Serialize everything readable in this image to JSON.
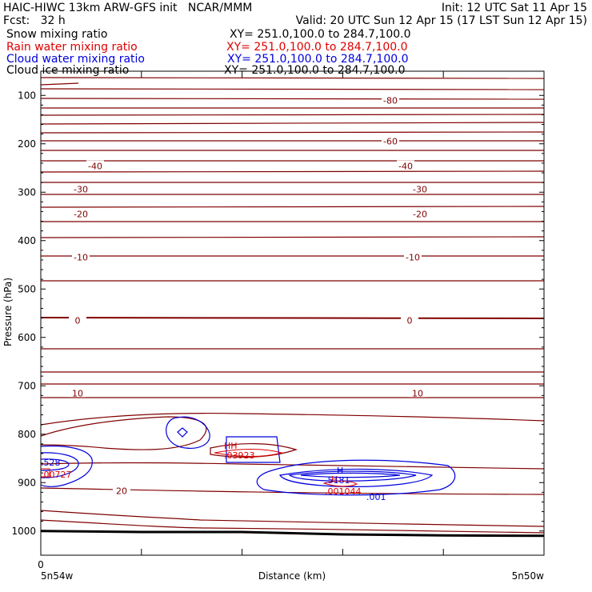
{
  "header": {
    "title": "HAIC-HIWC 13km ARW-GFS init   NCAR/MMM",
    "init": "Init: 12 UTC Sat 11 Apr 15",
    "fcst": "Fcst:   32 h",
    "valid": "Valid: 20 UTC Sun 12 Apr 15 (17 LST Sun 12 Apr 15)"
  },
  "fields": [
    {
      "label": "Snow mixing ratio",
      "xy": "XY= 251.0,100.0 to 284.7,100.0",
      "color": "#000000"
    },
    {
      "label": "Rain water mixing ratio",
      "xy": "XY= 251.0,100.0 to 284.7,100.0",
      "color": "#e00000"
    },
    {
      "label": "Cloud water mixing ratio",
      "xy": "XY= 251.0,100.0 to 284.7,100.0",
      "color": "#0000dd"
    },
    {
      "label": "Cloud ice mixing ratio",
      "xy": "XY= 251.0,100.0 to 284.7,100.0",
      "color": "#000000"
    }
  ],
  "colors": {
    "temperature": "#800000",
    "cloud_water": "#0000dd",
    "rain_water": "#e00000",
    "ground": "#000000"
  },
  "chart_data": {
    "type": "line",
    "ylabel": "Pressure (hPa)",
    "xlabel": "Distance (km)",
    "y_inverted": true,
    "ylim": [
      1050,
      50
    ],
    "y_ticks": [
      100,
      200,
      300,
      400,
      500,
      600,
      700,
      800,
      900,
      1000
    ],
    "x_ticks": [
      "0",
      "",
      "",
      "",
      ""
    ],
    "x_start_label": "5n54w",
    "x_end_label": "5n50w",
    "temperature_contour_labels": [
      {
        "text": "-80",
        "p": 110
      },
      {
        "text": "-60",
        "p": 195
      },
      {
        "text": "-40",
        "p": 246
      },
      {
        "text": "-30",
        "p": 294
      },
      {
        "text": "-20",
        "p": 345
      },
      {
        "text": "-10",
        "p": 434
      },
      {
        "text": "0",
        "p": 565
      },
      {
        "text": "10",
        "p": 715
      },
      {
        "text": "20",
        "p": 917
      }
    ],
    "field_labels": [
      {
        "text": "H",
        "color": "cloud_water"
      },
      {
        "text": "H",
        "color": "rain_water"
      },
      {
        "text": ".5181",
        "color": "cloud_water"
      },
      {
        "text": ".001044",
        "color": "rain_water"
      },
      {
        "text": ".001",
        "color": "cloud_water"
      },
      {
        "text": ".528",
        "color": "cloud_water"
      },
      {
        "text": ".00727",
        "color": "rain_water"
      },
      {
        "text": "HH",
        "color": "rain_water"
      },
      {
        "text": ".03923",
        "color": "rain_water"
      }
    ],
    "surface_pressure": [
      1000,
      1002,
      1002,
      1007,
      1009,
      1010
    ]
  }
}
